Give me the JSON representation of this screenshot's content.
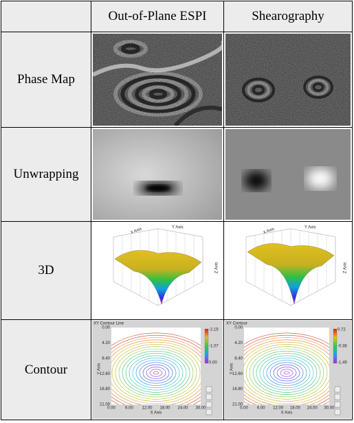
{
  "table": {
    "columns": [
      "Out-of-Plane ESPI",
      "Shearography"
    ],
    "rows": [
      {
        "label": "Phase Map"
      },
      {
        "label": "Unwrapping"
      },
      {
        "label": "3D"
      },
      {
        "label": "Contour"
      }
    ]
  },
  "plots": {
    "surface": {
      "x_axis": "X Axis",
      "y_axis": "Y Axis",
      "z_axis": "Z Axis"
    },
    "contour_espi": {
      "title": "XY Contour Line",
      "x_axis": "X Axis",
      "y_axis": "Y Axis",
      "xticks": [
        "0.00",
        "6.00",
        "12.00",
        "18.00",
        "24.00",
        "30.00"
      ],
      "yticks": [
        "0.00",
        "4.20",
        "8.40",
        "12.60",
        "16.80",
        "21.00"
      ],
      "scale": [
        "-2.15",
        "-1.07",
        "0.00"
      ]
    },
    "contour_shear": {
      "title": "XY Contour",
      "x_axis": "X Axis",
      "y_axis": "Y Axis",
      "xticks": [
        "0.00",
        "6.00",
        "12.00",
        "18.00",
        "24.00",
        "30.00"
      ],
      "yticks": [
        "0.00",
        "4.20",
        "8.40",
        "12.60",
        "16.80",
        "21.00"
      ],
      "scale": [
        "0.72",
        "-0.38",
        "-1.49"
      ]
    }
  }
}
